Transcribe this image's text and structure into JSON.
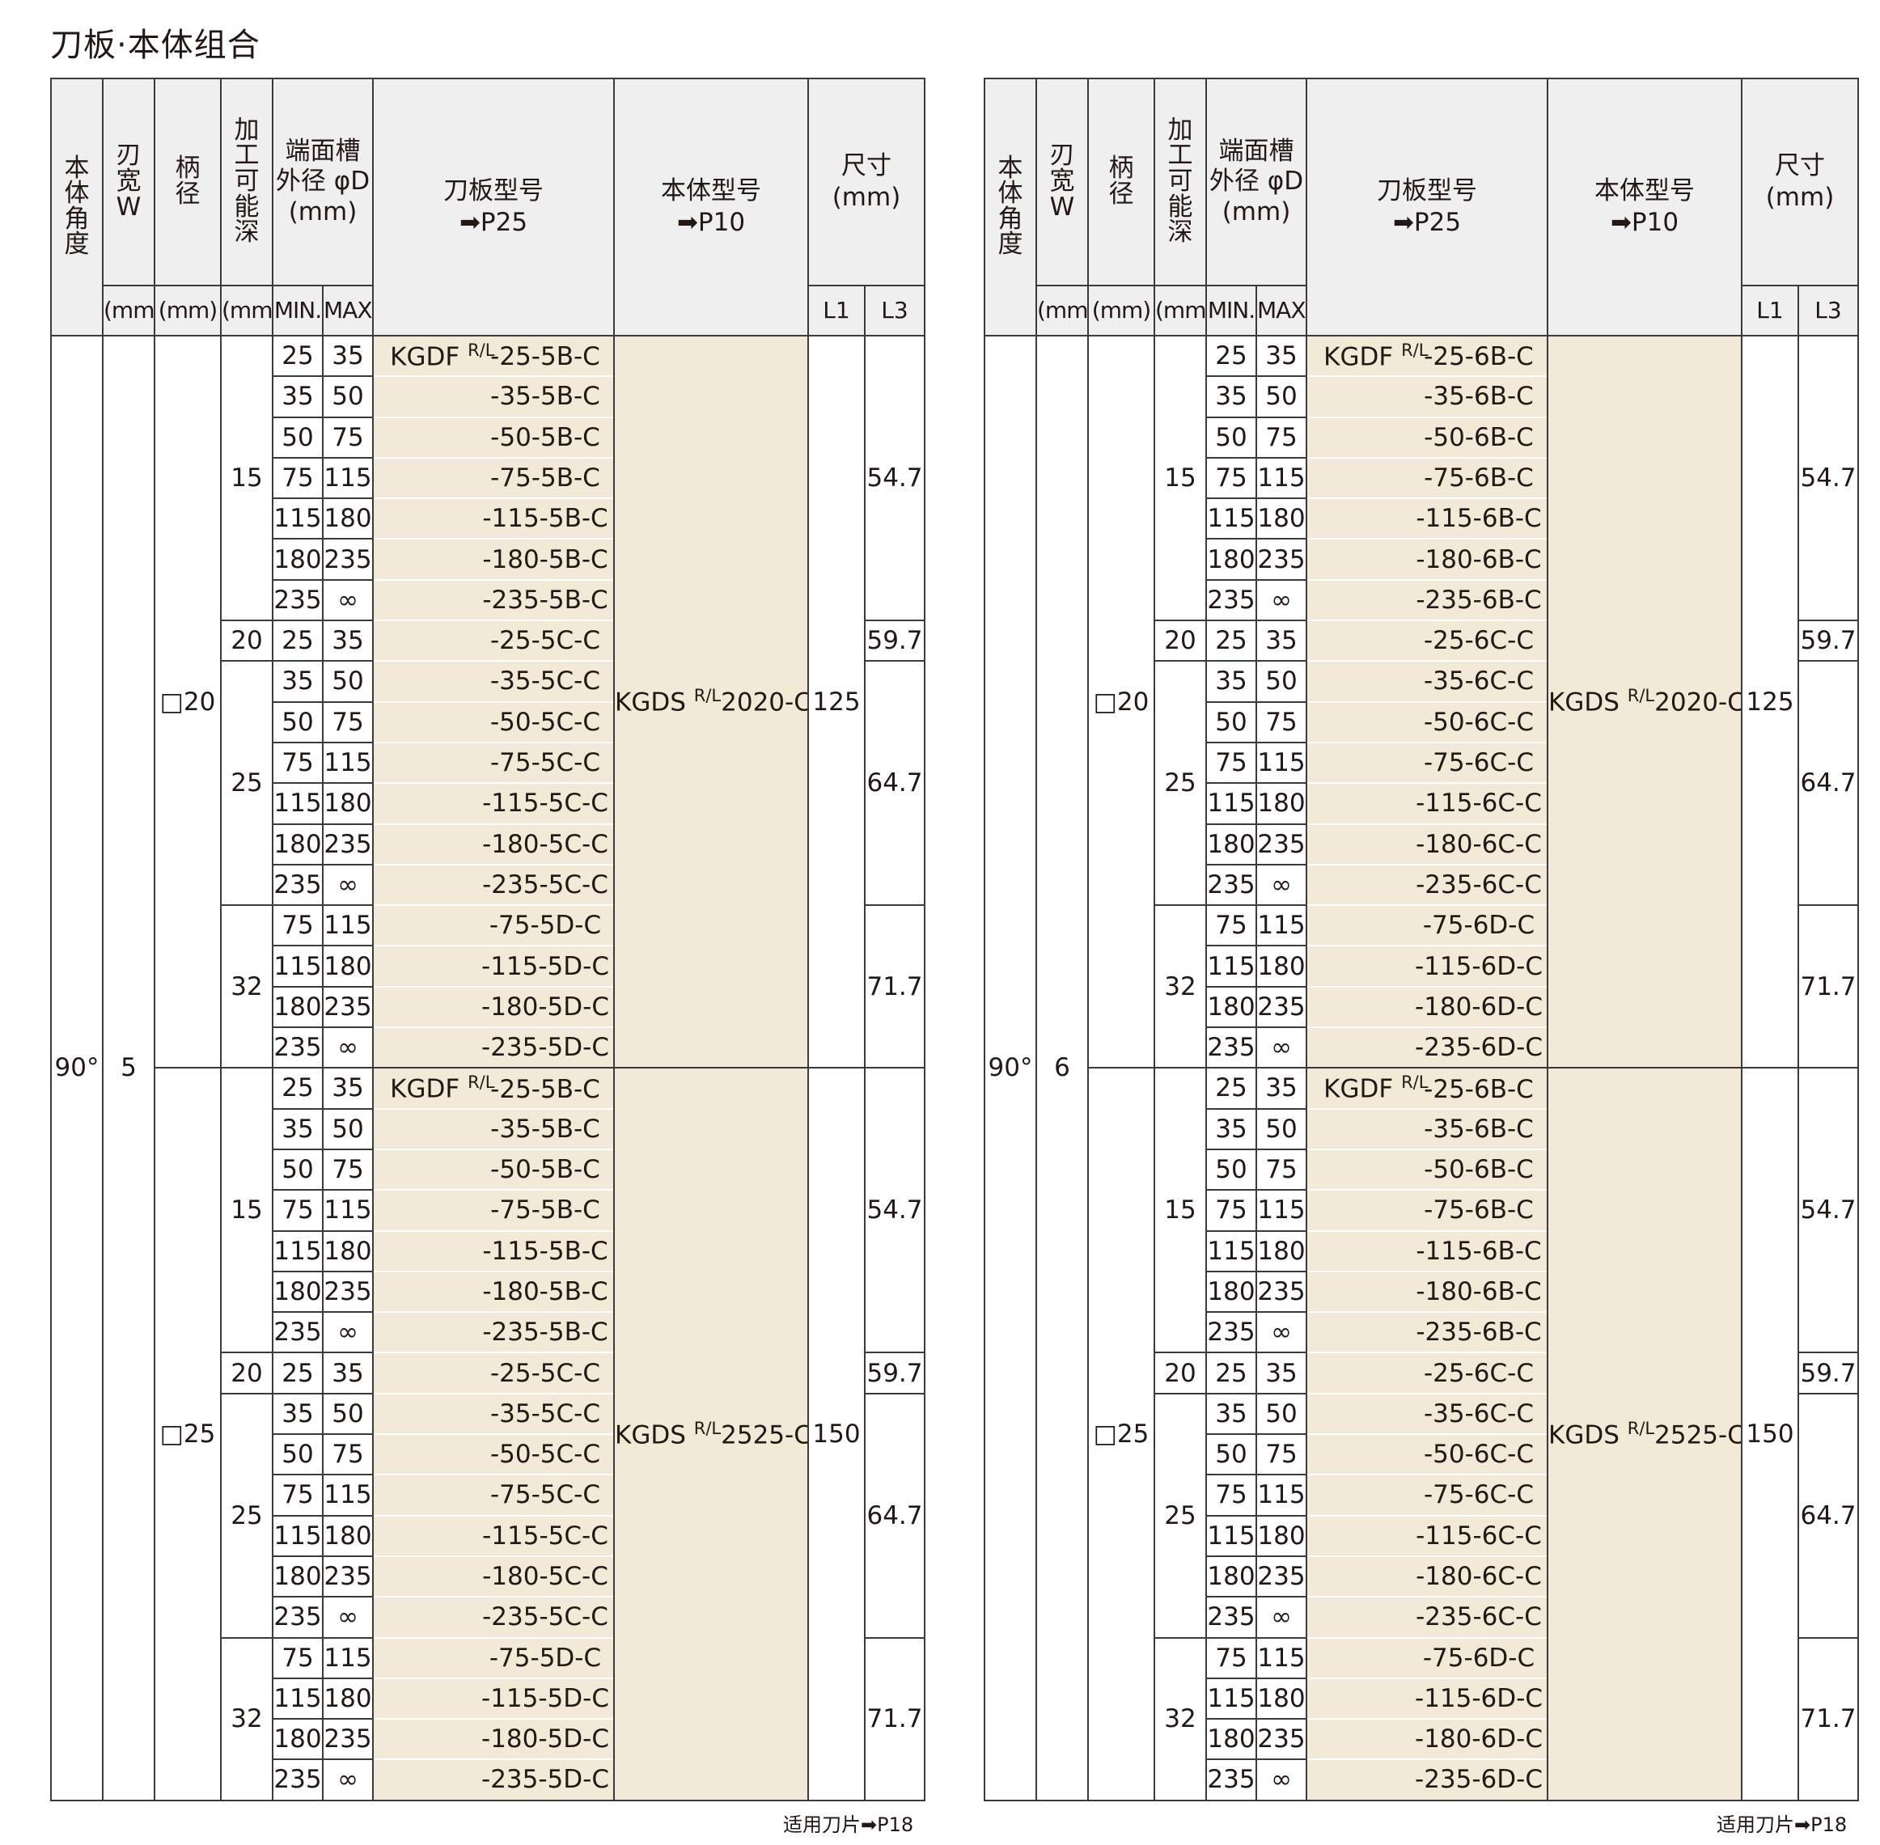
{
  "title": "刀板·本体组合",
  "headers": {
    "angle": "本体角度",
    "width": "刃宽W",
    "shank": "柄径",
    "depth": "加工可能深",
    "dia": "端面槽\n外径 φD\n(mm)",
    "blade": "刀板型号\n➡P25",
    "body": "本体型号\n➡P10",
    "size": "尺寸\n(mm)",
    "unit": "(mm)",
    "min": "MIN.",
    "max": "MAX.",
    "l1": "L1",
    "l3": "L3"
  },
  "tables": [
    {
      "angle": "90°",
      "width": "5",
      "blade_prefix": "KGDF",
      "blade_sup": "R/L",
      "groups": [
        {
          "shank": "□20",
          "body_prefix": "KGDS",
          "body_sup": "R/L",
          "body_suffix": "2020-C",
          "l1": "125",
          "depths": [
            {
              "depth": "15",
              "l3": "54.7",
              "rows": [
                {
                  "min": "25",
                  "max": "35",
                  "blade": "-25-5B-C"
                },
                {
                  "min": "35",
                  "max": "50",
                  "blade": "-35-5B-C"
                },
                {
                  "min": "50",
                  "max": "75",
                  "blade": "-50-5B-C"
                },
                {
                  "min": "75",
                  "max": "115",
                  "blade": "-75-5B-C"
                },
                {
                  "min": "115",
                  "max": "180",
                  "blade": "-115-5B-C"
                },
                {
                  "min": "180",
                  "max": "235",
                  "blade": "-180-5B-C"
                },
                {
                  "min": "235",
                  "max": "∞",
                  "blade": "-235-5B-C"
                }
              ]
            },
            {
              "depth": "20",
              "l3": "59.7",
              "rows": [
                {
                  "min": "25",
                  "max": "35",
                  "blade": "-25-5C-C"
                }
              ]
            },
            {
              "depth": "25",
              "l3": "64.7",
              "rows": [
                {
                  "min": "35",
                  "max": "50",
                  "blade": "-35-5C-C"
                },
                {
                  "min": "50",
                  "max": "75",
                  "blade": "-50-5C-C"
                },
                {
                  "min": "75",
                  "max": "115",
                  "blade": "-75-5C-C"
                },
                {
                  "min": "115",
                  "max": "180",
                  "blade": "-115-5C-C"
                },
                {
                  "min": "180",
                  "max": "235",
                  "blade": "-180-5C-C"
                },
                {
                  "min": "235",
                  "max": "∞",
                  "blade": "-235-5C-C"
                }
              ]
            },
            {
              "depth": "32",
              "l3": "71.7",
              "rows": [
                {
                  "min": "75",
                  "max": "115",
                  "blade": "-75-5D-C"
                },
                {
                  "min": "115",
                  "max": "180",
                  "blade": "-115-5D-C"
                },
                {
                  "min": "180",
                  "max": "235",
                  "blade": "-180-5D-C"
                },
                {
                  "min": "235",
                  "max": "∞",
                  "blade": "-235-5D-C"
                }
              ]
            }
          ]
        },
        {
          "shank": "□25",
          "body_prefix": "KGDS",
          "body_sup": "R/L",
          "body_suffix": "2525-C",
          "l1": "150",
          "depths": [
            {
              "depth": "15",
              "l3": "54.7",
              "rows": [
                {
                  "min": "25",
                  "max": "35",
                  "blade": "-25-5B-C"
                },
                {
                  "min": "35",
                  "max": "50",
                  "blade": "-35-5B-C"
                },
                {
                  "min": "50",
                  "max": "75",
                  "blade": "-50-5B-C"
                },
                {
                  "min": "75",
                  "max": "115",
                  "blade": "-75-5B-C"
                },
                {
                  "min": "115",
                  "max": "180",
                  "blade": "-115-5B-C"
                },
                {
                  "min": "180",
                  "max": "235",
                  "blade": "-180-5B-C"
                },
                {
                  "min": "235",
                  "max": "∞",
                  "blade": "-235-5B-C"
                }
              ]
            },
            {
              "depth": "20",
              "l3": "59.7",
              "rows": [
                {
                  "min": "25",
                  "max": "35",
                  "blade": "-25-5C-C"
                }
              ]
            },
            {
              "depth": "25",
              "l3": "64.7",
              "rows": [
                {
                  "min": "35",
                  "max": "50",
                  "blade": "-35-5C-C"
                },
                {
                  "min": "50",
                  "max": "75",
                  "blade": "-50-5C-C"
                },
                {
                  "min": "75",
                  "max": "115",
                  "blade": "-75-5C-C"
                },
                {
                  "min": "115",
                  "max": "180",
                  "blade": "-115-5C-C"
                },
                {
                  "min": "180",
                  "max": "235",
                  "blade": "-180-5C-C"
                },
                {
                  "min": "235",
                  "max": "∞",
                  "blade": "-235-5C-C"
                }
              ]
            },
            {
              "depth": "32",
              "l3": "71.7",
              "rows": [
                {
                  "min": "75",
                  "max": "115",
                  "blade": "-75-5D-C"
                },
                {
                  "min": "115",
                  "max": "180",
                  "blade": "-115-5D-C"
                },
                {
                  "min": "180",
                  "max": "235",
                  "blade": "-180-5D-C"
                },
                {
                  "min": "235",
                  "max": "∞",
                  "blade": "-235-5D-C"
                }
              ]
            }
          ]
        }
      ]
    },
    {
      "angle": "90°",
      "width": "6",
      "blade_prefix": "KGDF",
      "blade_sup": "R/L",
      "groups": [
        {
          "shank": "□20",
          "body_prefix": "KGDS",
          "body_sup": "R/L",
          "body_suffix": "2020-C",
          "l1": "125",
          "depths": [
            {
              "depth": "15",
              "l3": "54.7",
              "rows": [
                {
                  "min": "25",
                  "max": "35",
                  "blade": "-25-6B-C"
                },
                {
                  "min": "35",
                  "max": "50",
                  "blade": "-35-6B-C"
                },
                {
                  "min": "50",
                  "max": "75",
                  "blade": "-50-6B-C"
                },
                {
                  "min": "75",
                  "max": "115",
                  "blade": "-75-6B-C"
                },
                {
                  "min": "115",
                  "max": "180",
                  "blade": "-115-6B-C"
                },
                {
                  "min": "180",
                  "max": "235",
                  "blade": "-180-6B-C"
                },
                {
                  "min": "235",
                  "max": "∞",
                  "blade": "-235-6B-C"
                }
              ]
            },
            {
              "depth": "20",
              "l3": "59.7",
              "rows": [
                {
                  "min": "25",
                  "max": "35",
                  "blade": "-25-6C-C"
                }
              ]
            },
            {
              "depth": "25",
              "l3": "64.7",
              "rows": [
                {
                  "min": "35",
                  "max": "50",
                  "blade": "-35-6C-C"
                },
                {
                  "min": "50",
                  "max": "75",
                  "blade": "-50-6C-C"
                },
                {
                  "min": "75",
                  "max": "115",
                  "blade": "-75-6C-C"
                },
                {
                  "min": "115",
                  "max": "180",
                  "blade": "-115-6C-C"
                },
                {
                  "min": "180",
                  "max": "235",
                  "blade": "-180-6C-C"
                },
                {
                  "min": "235",
                  "max": "∞",
                  "blade": "-235-6C-C"
                }
              ]
            },
            {
              "depth": "32",
              "l3": "71.7",
              "rows": [
                {
                  "min": "75",
                  "max": "115",
                  "blade": "-75-6D-C"
                },
                {
                  "min": "115",
                  "max": "180",
                  "blade": "-115-6D-C"
                },
                {
                  "min": "180",
                  "max": "235",
                  "blade": "-180-6D-C"
                },
                {
                  "min": "235",
                  "max": "∞",
                  "blade": "-235-6D-C"
                }
              ]
            }
          ]
        },
        {
          "shank": "□25",
          "body_prefix": "KGDS",
          "body_sup": "R/L",
          "body_suffix": "2525-C",
          "l1": "150",
          "depths": [
            {
              "depth": "15",
              "l3": "54.7",
              "rows": [
                {
                  "min": "25",
                  "max": "35",
                  "blade": "-25-6B-C"
                },
                {
                  "min": "35",
                  "max": "50",
                  "blade": "-35-6B-C"
                },
                {
                  "min": "50",
                  "max": "75",
                  "blade": "-50-6B-C"
                },
                {
                  "min": "75",
                  "max": "115",
                  "blade": "-75-6B-C"
                },
                {
                  "min": "115",
                  "max": "180",
                  "blade": "-115-6B-C"
                },
                {
                  "min": "180",
                  "max": "235",
                  "blade": "-180-6B-C"
                },
                {
                  "min": "235",
                  "max": "∞",
                  "blade": "-235-6B-C"
                }
              ]
            },
            {
              "depth": "20",
              "l3": "59.7",
              "rows": [
                {
                  "min": "25",
                  "max": "35",
                  "blade": "-25-6C-C"
                }
              ]
            },
            {
              "depth": "25",
              "l3": "64.7",
              "rows": [
                {
                  "min": "35",
                  "max": "50",
                  "blade": "-35-6C-C"
                },
                {
                  "min": "50",
                  "max": "75",
                  "blade": "-50-6C-C"
                },
                {
                  "min": "75",
                  "max": "115",
                  "blade": "-75-6C-C"
                },
                {
                  "min": "115",
                  "max": "180",
                  "blade": "-115-6C-C"
                },
                {
                  "min": "180",
                  "max": "235",
                  "blade": "-180-6C-C"
                },
                {
                  "min": "235",
                  "max": "∞",
                  "blade": "-235-6C-C"
                }
              ]
            },
            {
              "depth": "32",
              "l3": "71.7",
              "rows": [
                {
                  "min": "75",
                  "max": "115",
                  "blade": "-75-6D-C"
                },
                {
                  "min": "115",
                  "max": "180",
                  "blade": "-115-6D-C"
                },
                {
                  "min": "180",
                  "max": "235",
                  "blade": "-180-6D-C"
                },
                {
                  "min": "235",
                  "max": "∞",
                  "blade": "-235-6D-C"
                }
              ]
            }
          ]
        }
      ]
    }
  ],
  "footnote": "适用刀片➡P18",
  "colors": {
    "header_bg": "#efefef",
    "blade_body_bg": "#f2ead7",
    "line": "#3a3a3a"
  }
}
